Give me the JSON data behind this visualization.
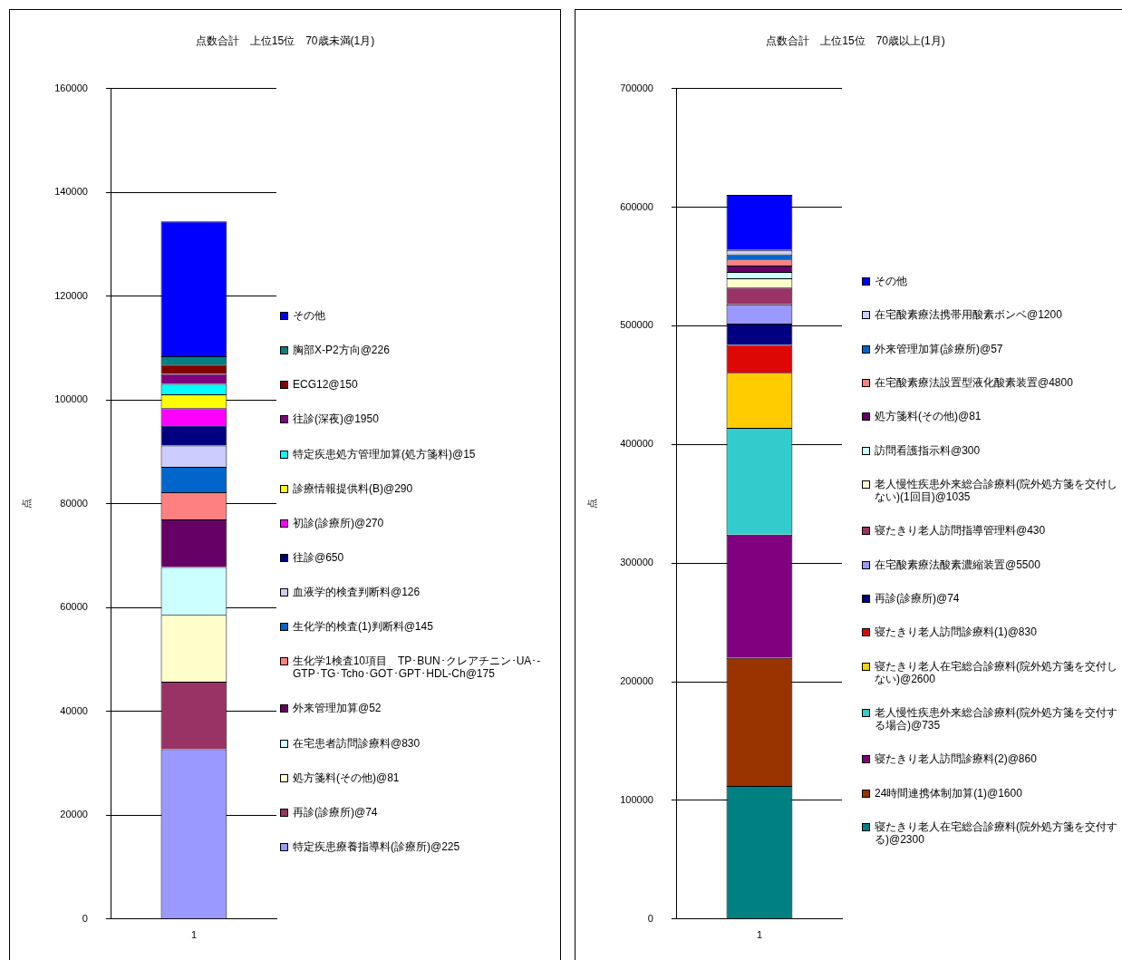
{
  "chart_data": [
    {
      "type": "bar",
      "stacked": true,
      "title": "点数合計　上位15位　70歳未満(1月)",
      "ylabel": "点",
      "categories": [
        "1"
      ],
      "ylim": [
        0,
        160000
      ],
      "yticks": [
        0,
        20000,
        40000,
        60000,
        80000,
        100000,
        120000,
        140000,
        160000
      ],
      "grid": "y",
      "legend": "right",
      "series": [
        {
          "name": "特定疾患療養指導料(診療所)@225",
          "color": "#9999ff",
          "values": [
            32700
          ]
        },
        {
          "name": "再診(診療所)@74",
          "color": "#993366",
          "values": [
            13000
          ]
        },
        {
          "name": "処方箋料(その他)@81",
          "color": "#ffffcc",
          "values": [
            12900
          ]
        },
        {
          "name": "在宅患者訪問診療料@830",
          "color": "#ccffff",
          "values": [
            9200
          ]
        },
        {
          "name": "外来管理加算@52",
          "color": "#660066",
          "values": [
            9200
          ]
        },
        {
          "name": "生化学1検査10項目　TP･BUN･クレアチニン･UA･-GTP･TG･Tcho･GOT･GPT･HDL-Ch@175",
          "color": "#ff8080",
          "values": [
            5200
          ]
        },
        {
          "name": "生化学的検査(1)判断料@145",
          "color": "#0066cc",
          "values": [
            4900
          ]
        },
        {
          "name": "血液学的検査判断料@126",
          "color": "#ccccff",
          "values": [
            4100
          ]
        },
        {
          "name": "往診@650",
          "color": "#000080",
          "values": [
            3900
          ]
        },
        {
          "name": "初診(診療所)@270",
          "color": "#ff00ff",
          "values": [
            3300
          ]
        },
        {
          "name": "診療情報提供料(B)@290",
          "color": "#ffff00",
          "values": [
            2700
          ]
        },
        {
          "name": "特定疾患処方管理加算(処方箋料)@15",
          "color": "#00ffff",
          "values": [
            2000
          ]
        },
        {
          "name": "往診(深夜)@1950",
          "color": "#800080",
          "values": [
            1900
          ]
        },
        {
          "name": "ECG12@150",
          "color": "#800000",
          "values": [
            1800
          ]
        },
        {
          "name": "胸部X-P2方向@226",
          "color": "#008080",
          "values": [
            1600
          ]
        },
        {
          "name": "その他",
          "color": "#0000ff",
          "values": [
            26000
          ]
        }
      ]
    },
    {
      "type": "bar",
      "stacked": true,
      "title": "点数合計　上位15位　70歳以上(1月)",
      "ylabel": "点",
      "categories": [
        "1"
      ],
      "ylim": [
        0,
        700000
      ],
      "yticks": [
        0,
        100000,
        200000,
        300000,
        400000,
        500000,
        600000,
        700000
      ],
      "grid": "y",
      "legend": "right",
      "series": [
        {
          "name": "寝たきり老人在宅総合診療料(院外処方箋を交付する)@2300",
          "color": "#008080",
          "values": [
            112100
          ]
        },
        {
          "name": "24時間連携体制加算(1)@1600",
          "color": "#993300",
          "values": [
            108000
          ]
        },
        {
          "name": "寝たきり老人訪問診療料(2)@860",
          "color": "#800080",
          "values": [
            103900
          ]
        },
        {
          "name": "老人慢性疾患外来総合診療料(院外処方箋を交付する場合)@735",
          "color": "#33cccc",
          "values": [
            89900
          ]
        },
        {
          "name": "寝たきり老人在宅総合診療料(院外処方箋を交付しない)@2600",
          "color": "#ffcc00",
          "values": [
            46400
          ]
        },
        {
          "name": "寝たきり老人訪問診療料(1)@830",
          "color": "#dd0806",
          "values": [
            23600
          ]
        },
        {
          "name": "再診(診療所)@74",
          "color": "#000080",
          "values": [
            17900
          ]
        },
        {
          "name": "在宅酸素療法酸素濃縮装置@5500",
          "color": "#9999ff",
          "values": [
            16300
          ]
        },
        {
          "name": "寝たきり老人訪問指導管理料@430",
          "color": "#993366",
          "values": [
            14100
          ]
        },
        {
          "name": "老人慢性疾患外来総合診療料(院外処方箋を交付しない)(1回目)@1035",
          "color": "#ffffcc",
          "values": [
            7900
          ]
        },
        {
          "name": "訪問看護指示料@300",
          "color": "#ccffff",
          "values": [
            5300
          ]
        },
        {
          "name": "処方箋料(その他)@81",
          "color": "#660066",
          "values": [
            5300
          ]
        },
        {
          "name": "在宅酸素療法設置型液化酸素装置@4800",
          "color": "#ff8080",
          "values": [
            5100
          ]
        },
        {
          "name": "外来管理加算(診療所)@57",
          "color": "#0066cc",
          "values": [
            4500
          ]
        },
        {
          "name": "在宅酸素療法携帯用酸素ボンベ@1200",
          "color": "#ccccff",
          "values": [
            3500
          ]
        },
        {
          "name": "その他",
          "color": "#0000ff",
          "values": [
            46500
          ]
        }
      ]
    }
  ]
}
